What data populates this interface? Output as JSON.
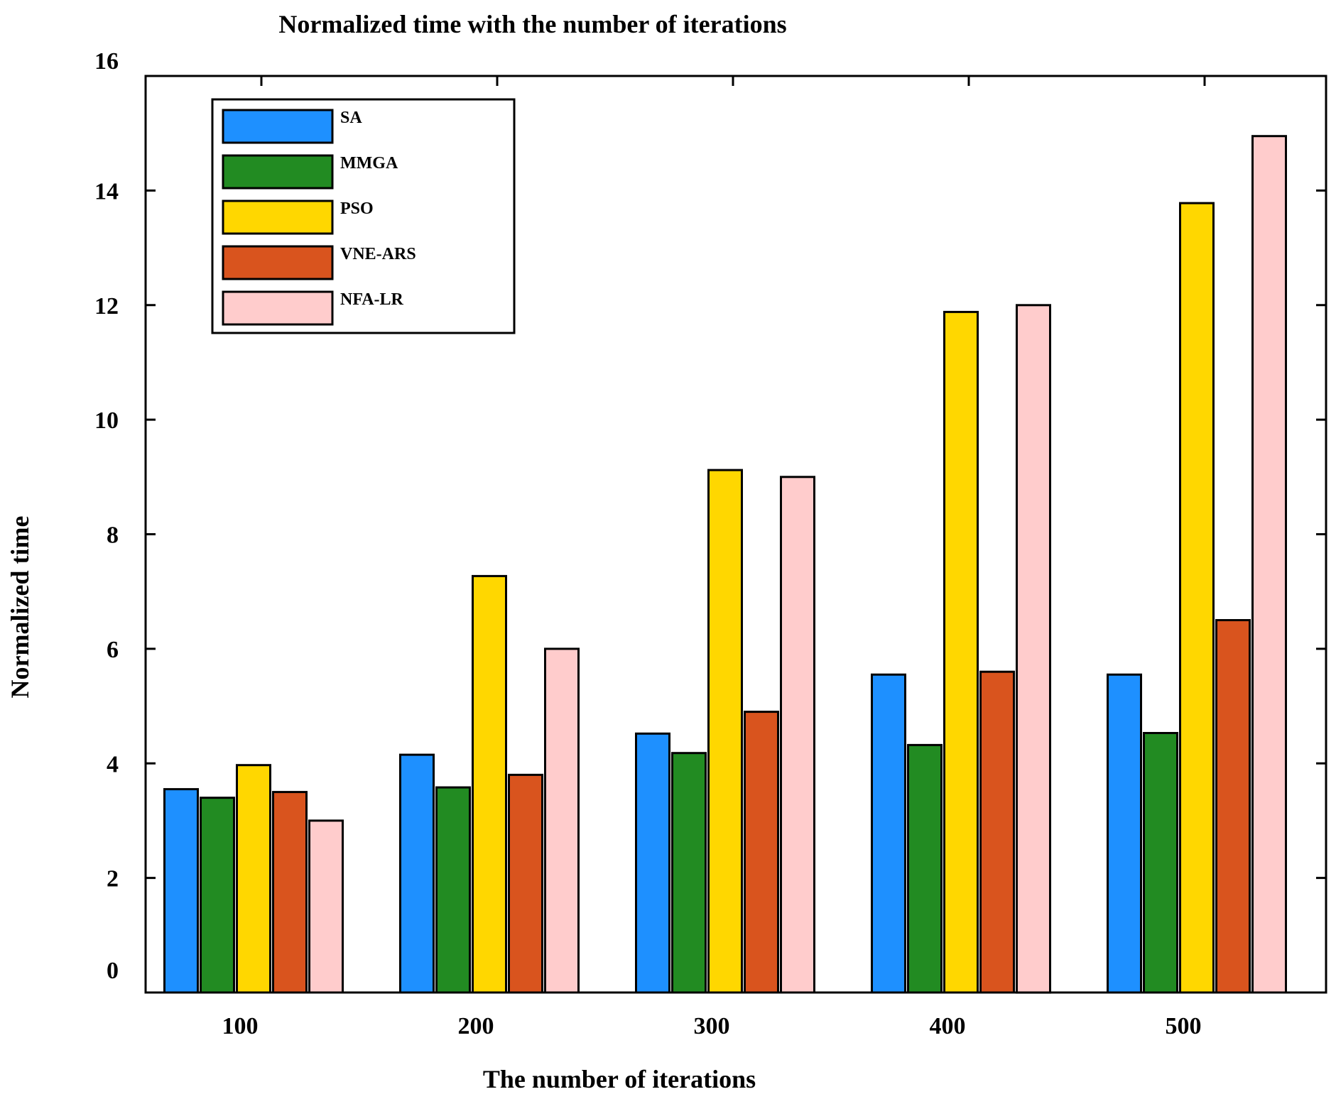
{
  "chart_data": {
    "type": "bar",
    "title": "Normalized time with the number of iterations",
    "xlabel": "The number of iterations",
    "ylabel": "Normalized time",
    "categories": [
      "100",
      "200",
      "300",
      "400",
      "500"
    ],
    "ylim": [
      0,
      16
    ],
    "yticks": [
      "0",
      "2",
      "4",
      "6",
      "8",
      "10",
      "12",
      "14",
      "16"
    ],
    "grid": false,
    "legend_position": "top-left",
    "series": [
      {
        "name": "SA",
        "color": "#1E90FF",
        "values": [
          3.55,
          4.15,
          4.52,
          5.55,
          5.55
        ]
      },
      {
        "name": "MMGA",
        "color": "#228B22",
        "values": [
          3.4,
          3.58,
          4.18,
          4.32,
          4.53
        ]
      },
      {
        "name": "PSO",
        "color": "#FFD700",
        "values": [
          3.97,
          7.27,
          9.12,
          11.88,
          13.78
        ]
      },
      {
        "name": "VNE-ARS",
        "color": "#D9541E",
        "values": [
          3.5,
          3.8,
          4.9,
          5.6,
          6.5
        ]
      },
      {
        "name": "NFA-LR",
        "color": "#FFCCCC",
        "values": [
          3.0,
          6.0,
          9.0,
          12.0,
          14.95
        ]
      }
    ]
  }
}
